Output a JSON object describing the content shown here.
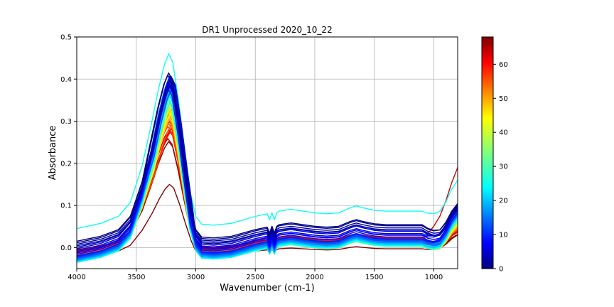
{
  "chart_data": {
    "type": "line",
    "title": "DR1 Unprocessed 2020_10_22",
    "xlabel": "Wavenumber (cm-1)",
    "ylabel": "Absorbance",
    "xlim": [
      4000,
      800
    ],
    "ylim": [
      -0.05,
      0.5
    ],
    "x_inverted": true,
    "grid": true,
    "xticks": [
      4000,
      3500,
      3000,
      2500,
      2000,
      1500,
      1000
    ],
    "xtick_labels": [
      "4000",
      "3500",
      "3000",
      "2500",
      "2000",
      "1500",
      "1000"
    ],
    "yticks": [
      0.0,
      0.1,
      0.2,
      0.3,
      0.4,
      0.5
    ],
    "ytick_labels": [
      "0.0",
      "0.1",
      "0.2",
      "0.3",
      "0.4",
      "0.5"
    ],
    "colormap": "jet",
    "colorbar": {
      "range": [
        0,
        68
      ],
      "ticks": [
        0,
        10,
        20,
        30,
        40,
        50,
        60
      ],
      "tick_labels": [
        "0",
        "10",
        "20",
        "30",
        "40",
        "50",
        "60"
      ]
    },
    "series_count": 68,
    "curve_shape": {
      "x": [
        4000,
        3800,
        3650,
        3550,
        3450,
        3380,
        3320,
        3270,
        3235,
        3200,
        3150,
        3100,
        3050,
        3000,
        2950,
        2850,
        2700,
        2500,
        2400,
        2380,
        2360,
        2340,
        2320,
        2300,
        2200,
        2100,
        2000,
        1900,
        1800,
        1700,
        1650,
        1600,
        1500,
        1400,
        1300,
        1200,
        1100,
        1050,
        1000,
        950,
        900,
        850,
        800
      ],
      "profile": [
        0.0,
        0.03,
        0.07,
        0.15,
        0.36,
        0.6,
        0.8,
        0.94,
        1.0,
        0.95,
        0.72,
        0.45,
        0.2,
        0.07,
        0.025,
        0.02,
        0.03,
        0.07,
        0.085,
        0.05,
        0.09,
        0.05,
        0.09,
        0.1,
        0.11,
        0.1,
        0.09,
        0.085,
        0.09,
        0.12,
        0.13,
        0.12,
        0.105,
        0.1,
        0.1,
        0.1,
        0.1,
        0.095,
        0.1,
        0.12,
        0.18,
        0.26,
        0.32
      ]
    },
    "highlight_series": [
      {
        "index": 26,
        "baseline": 0.045,
        "peak": 0.46,
        "note_end": 0.16
      },
      {
        "index": 0,
        "baseline": 0.015,
        "peak": 0.41,
        "note_end": 0.1
      },
      {
        "index": 62,
        "baseline": -0.015,
        "peak": 0.32,
        "note_end": 0.19
      },
      {
        "index": 67,
        "baseline": -0.02,
        "peak": 0.15,
        "note_end": 0.03
      }
    ]
  }
}
